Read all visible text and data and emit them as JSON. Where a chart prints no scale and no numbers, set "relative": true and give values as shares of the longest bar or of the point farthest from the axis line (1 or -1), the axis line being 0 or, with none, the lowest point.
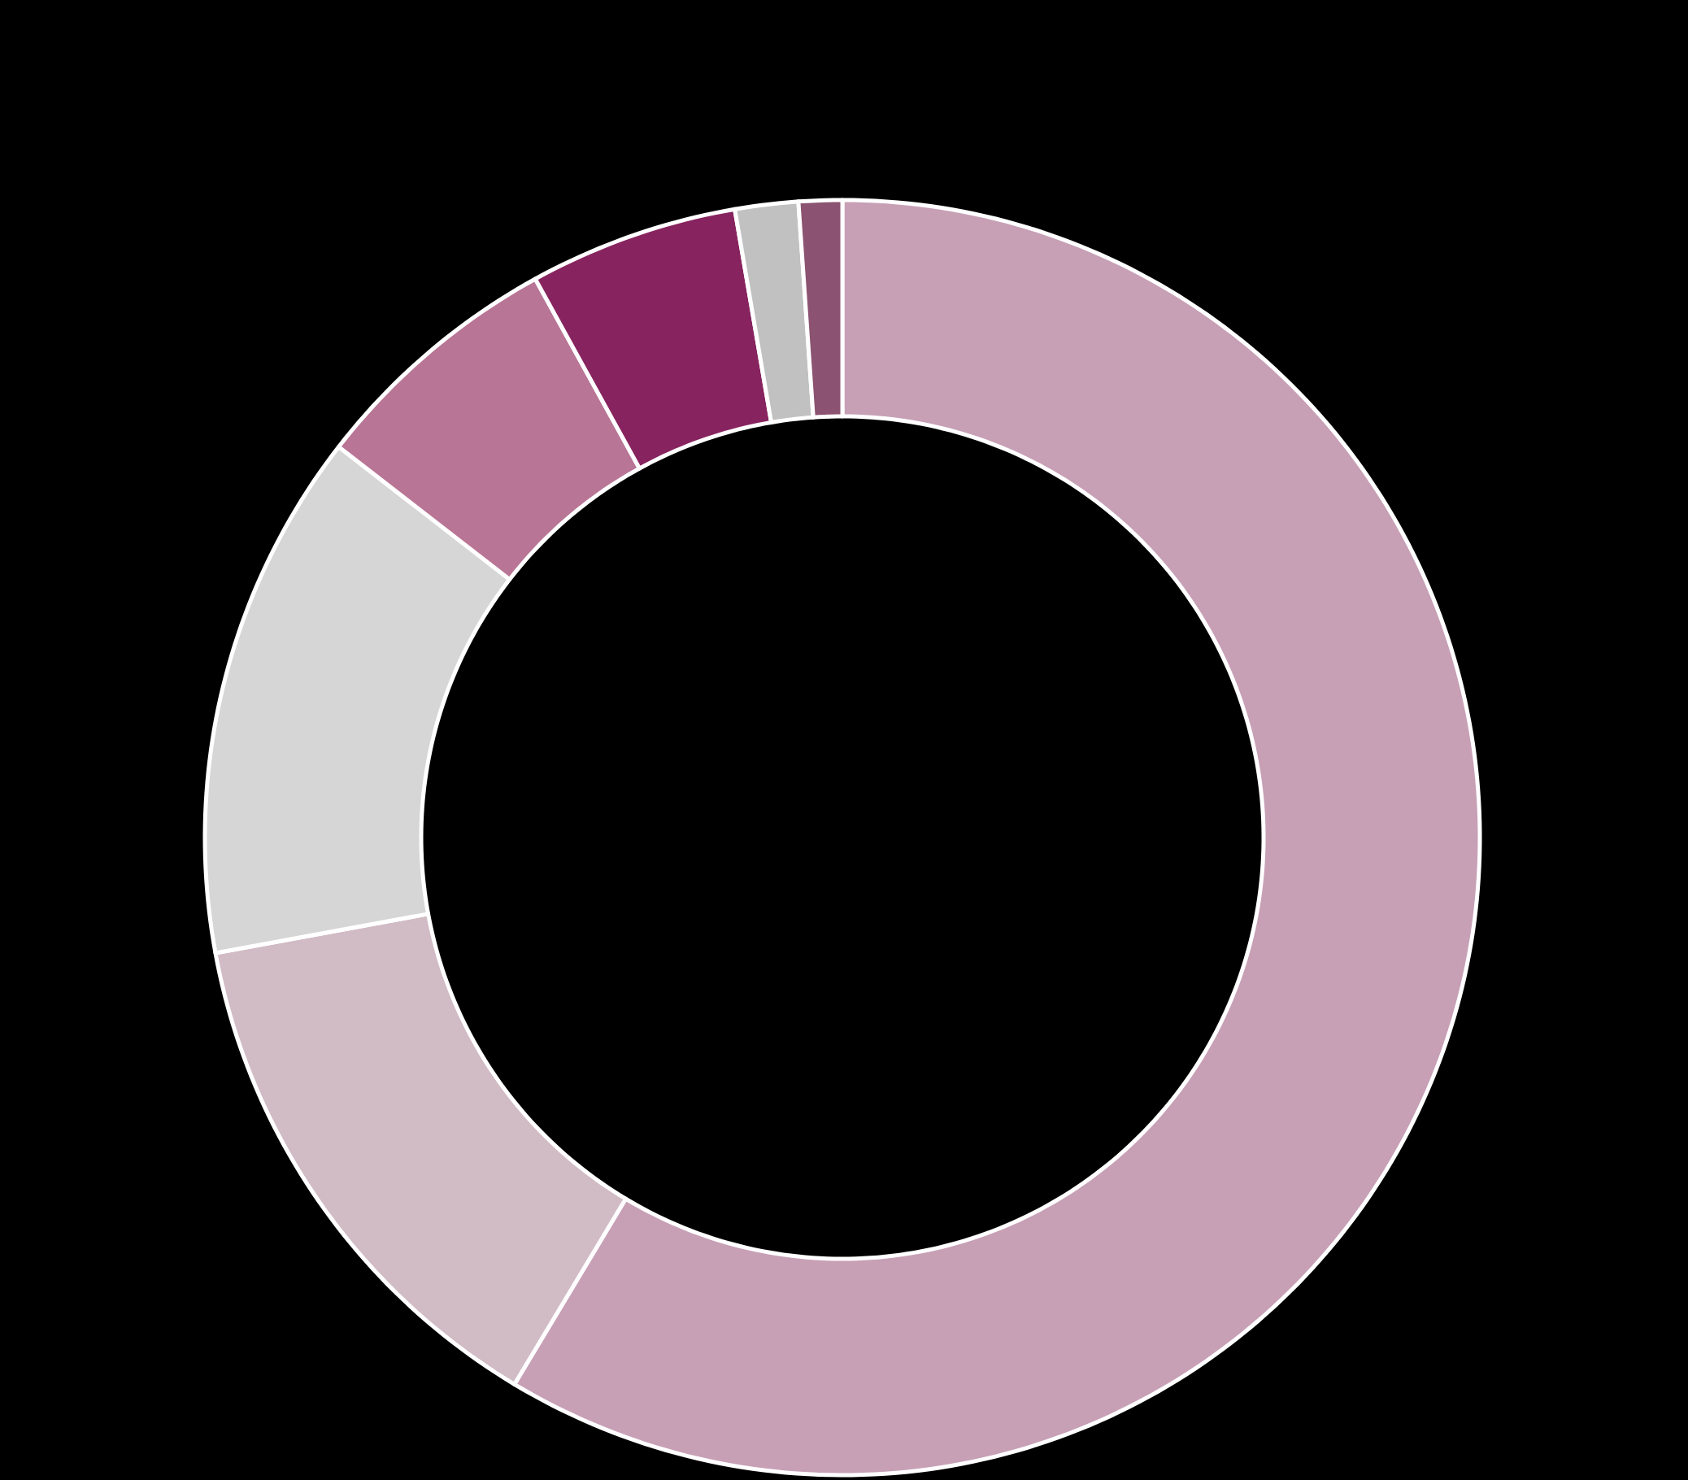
{
  "chart_data": {
    "type": "donut",
    "relative": true,
    "categories": [
      null,
      null,
      null,
      null,
      null,
      null,
      null
    ],
    "values": [
      58.6,
      13.5,
      13.4,
      6.5,
      5.3,
      1.6,
      1.1
    ],
    "colors": [
      "#c7a0b6",
      "#d1bbc4",
      "#d6d6d6",
      "#b97595",
      "#87245f",
      "#c1c1c1",
      "#8b5371"
    ]
  }
}
